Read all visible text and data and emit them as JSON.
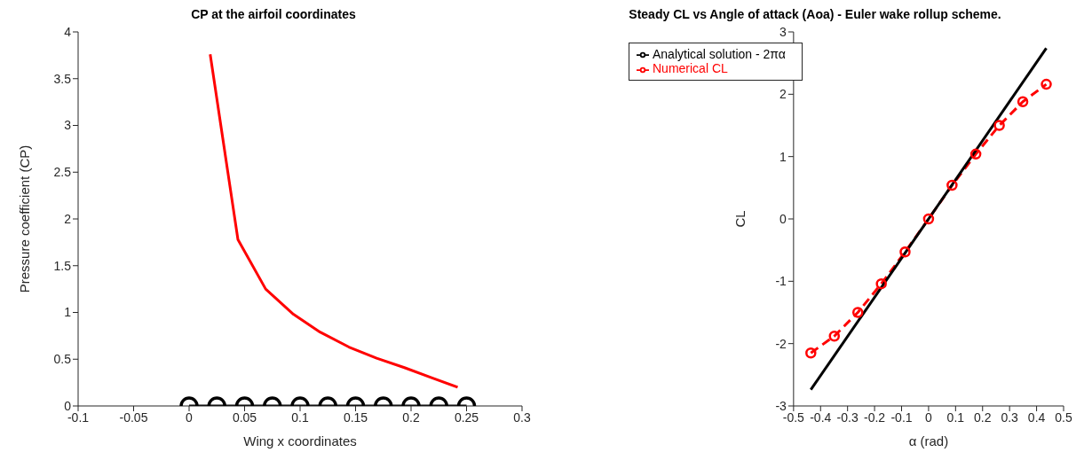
{
  "chart_data": [
    {
      "type": "line",
      "title": "CP at the airfoil coordinates",
      "xlabel": "Wing x coordinates",
      "ylabel": "Pressure coefficient (CP)",
      "xlim": [
        -0.1,
        0.3
      ],
      "xticks": [
        -0.1,
        -0.05,
        0,
        0.05,
        0.1,
        0.15,
        0.2,
        0.25,
        0.3
      ],
      "ylim": [
        0,
        4
      ],
      "yticks": [
        0,
        0.5,
        1,
        1.5,
        2,
        2.5,
        3,
        3.5,
        4
      ],
      "grid": false,
      "legend": false,
      "series": [
        {
          "color": "#ff0000",
          "marker": "none",
          "line_style": "solid",
          "x": [
            0.019,
            0.044,
            0.069,
            0.094,
            0.118,
            0.144,
            0.169,
            0.194,
            0.219,
            0.242
          ],
          "values": [
            3.76,
            1.78,
            1.25,
            0.98,
            0.79,
            0.63,
            0.51,
            0.41,
            0.3,
            0.2
          ]
        },
        {
          "color": "#000000",
          "marker": "circle",
          "line_style": "solid",
          "x": [
            0,
            0.025,
            0.05,
            0.075,
            0.1,
            0.125,
            0.15,
            0.175,
            0.2,
            0.225,
            0.25
          ],
          "values": [
            0,
            0,
            0,
            0,
            0,
            0,
            0,
            0,
            0,
            0,
            0
          ]
        }
      ]
    },
    {
      "type": "line",
      "title": "Steady CL vs Angle of attack (Aoa) - Euler wake rollup scheme.",
      "xlabel": "α (rad)",
      "ylabel": "CL",
      "xlim": [
        -0.5,
        0.5
      ],
      "xticks": [
        -0.5,
        -0.4,
        -0.3,
        -0.2,
        -0.1,
        0,
        0.1,
        0.2,
        0.3,
        0.4,
        0.5
      ],
      "ylim": [
        -3,
        3
      ],
      "yticks": [
        -3,
        -2,
        -1,
        0,
        1,
        2,
        3
      ],
      "grid": false,
      "legend": "top left",
      "series": [
        {
          "name": "Numerical CL",
          "color": "#ff0000",
          "marker": "circle",
          "line_style": "dashed",
          "x": [
            -0.436,
            -0.349,
            -0.262,
            -0.175,
            -0.087,
            0,
            0.087,
            0.175,
            0.262,
            0.349,
            0.436
          ],
          "values": [
            -2.15,
            -1.88,
            -1.5,
            -1.04,
            -0.53,
            0,
            0.54,
            1.04,
            1.5,
            1.88,
            2.16
          ]
        },
        {
          "name": "Analytical solution - 2πα",
          "color": "#000000",
          "marker": "none",
          "line_style": "solid",
          "x": [
            -0.436,
            0.436
          ],
          "values": [
            -2.74,
            2.74
          ]
        }
      ]
    }
  ]
}
